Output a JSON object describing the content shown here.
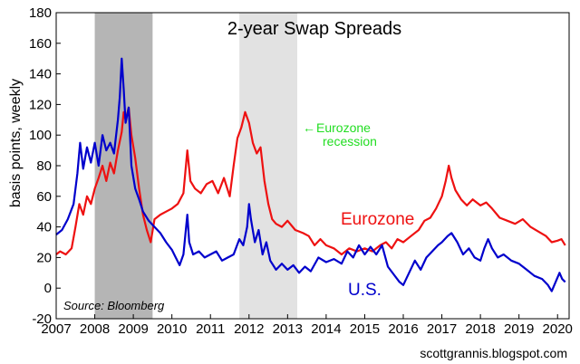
{
  "chart_data": {
    "type": "line",
    "title": "2-year Swap Spreads",
    "ylabel": "basis points, weekly",
    "xlabel": "",
    "ylim": [
      -20,
      180
    ],
    "xlim": [
      2007,
      2020.3
    ],
    "yticks": [
      "-20",
      "0",
      "20",
      "40",
      "60",
      "80",
      "100",
      "120",
      "140",
      "160",
      "180"
    ],
    "xticks": [
      "2007",
      "2008",
      "2009",
      "2010",
      "2011",
      "2012",
      "2013",
      "2014",
      "2015",
      "2016",
      "2017",
      "2018",
      "2019",
      "2020"
    ],
    "grid": false,
    "recession_shading": [
      {
        "start": 2008.0,
        "end": 2009.5,
        "color": "#b5b5b5",
        "note": "U.S. recession"
      },
      {
        "start": 2011.75,
        "end": 2013.25,
        "color": "#e2e2e2",
        "note": "Eurozone recession"
      }
    ],
    "annotation": {
      "text_line1": "Eurozone",
      "text_line2": "recession",
      "arrow": "←",
      "color": "#22dd22"
    },
    "source": "Source: Bloomberg",
    "credit": "scottgrannis.blogspot.com",
    "colors": {
      "us": "#0000cc",
      "eurozone": "#ee1111"
    },
    "series": [
      {
        "name": "U.S.",
        "label_text": "U.S.",
        "color": "#0000cc",
        "points": [
          [
            2007.0,
            35
          ],
          [
            2007.15,
            38
          ],
          [
            2007.3,
            45
          ],
          [
            2007.45,
            55
          ],
          [
            2007.55,
            75
          ],
          [
            2007.62,
            95
          ],
          [
            2007.7,
            78
          ],
          [
            2007.8,
            92
          ],
          [
            2007.9,
            82
          ],
          [
            2008.0,
            95
          ],
          [
            2008.1,
            80
          ],
          [
            2008.2,
            100
          ],
          [
            2008.3,
            90
          ],
          [
            2008.4,
            95
          ],
          [
            2008.5,
            88
          ],
          [
            2008.6,
            110
          ],
          [
            2008.65,
            125
          ],
          [
            2008.7,
            150
          ],
          [
            2008.75,
            130
          ],
          [
            2008.8,
            108
          ],
          [
            2008.88,
            118
          ],
          [
            2008.95,
            80
          ],
          [
            2009.05,
            65
          ],
          [
            2009.15,
            58
          ],
          [
            2009.25,
            50
          ],
          [
            2009.4,
            44
          ],
          [
            2009.55,
            40
          ],
          [
            2009.7,
            36
          ],
          [
            2009.85,
            30
          ],
          [
            2010.0,
            25
          ],
          [
            2010.1,
            20
          ],
          [
            2010.2,
            15
          ],
          [
            2010.3,
            22
          ],
          [
            2010.4,
            48
          ],
          [
            2010.45,
            30
          ],
          [
            2010.55,
            22
          ],
          [
            2010.7,
            24
          ],
          [
            2010.85,
            20
          ],
          [
            2011.0,
            22
          ],
          [
            2011.15,
            24
          ],
          [
            2011.3,
            18
          ],
          [
            2011.45,
            20
          ],
          [
            2011.6,
            22
          ],
          [
            2011.75,
            32
          ],
          [
            2011.85,
            28
          ],
          [
            2011.95,
            40
          ],
          [
            2012.0,
            55
          ],
          [
            2012.05,
            45
          ],
          [
            2012.15,
            30
          ],
          [
            2012.25,
            38
          ],
          [
            2012.35,
            22
          ],
          [
            2012.45,
            30
          ],
          [
            2012.55,
            18
          ],
          [
            2012.7,
            12
          ],
          [
            2012.85,
            16
          ],
          [
            2013.0,
            12
          ],
          [
            2013.15,
            15
          ],
          [
            2013.3,
            10
          ],
          [
            2013.45,
            14
          ],
          [
            2013.6,
            11
          ],
          [
            2013.8,
            20
          ],
          [
            2014.0,
            17
          ],
          [
            2014.2,
            19
          ],
          [
            2014.4,
            16
          ],
          [
            2014.55,
            24
          ],
          [
            2014.7,
            20
          ],
          [
            2014.85,
            28
          ],
          [
            2015.0,
            22
          ],
          [
            2015.15,
            27
          ],
          [
            2015.3,
            22
          ],
          [
            2015.45,
            28
          ],
          [
            2015.6,
            14
          ],
          [
            2015.75,
            9
          ],
          [
            2015.9,
            4
          ],
          [
            2016.0,
            2
          ],
          [
            2016.15,
            10
          ],
          [
            2016.3,
            18
          ],
          [
            2016.45,
            12
          ],
          [
            2016.6,
            20
          ],
          [
            2016.75,
            24
          ],
          [
            2016.9,
            28
          ],
          [
            2017.0,
            30
          ],
          [
            2017.15,
            34
          ],
          [
            2017.25,
            36
          ],
          [
            2017.4,
            30
          ],
          [
            2017.55,
            22
          ],
          [
            2017.7,
            26
          ],
          [
            2017.85,
            20
          ],
          [
            2018.0,
            18
          ],
          [
            2018.1,
            26
          ],
          [
            2018.2,
            32
          ],
          [
            2018.3,
            26
          ],
          [
            2018.45,
            20
          ],
          [
            2018.6,
            22
          ],
          [
            2018.8,
            18
          ],
          [
            2019.0,
            16
          ],
          [
            2019.2,
            12
          ],
          [
            2019.4,
            8
          ],
          [
            2019.6,
            6
          ],
          [
            2019.75,
            2
          ],
          [
            2019.85,
            -2
          ],
          [
            2019.95,
            4
          ],
          [
            2020.05,
            10
          ],
          [
            2020.12,
            6
          ],
          [
            2020.2,
            4
          ]
        ]
      },
      {
        "name": "Eurozone",
        "label_text": "Eurozone",
        "color": "#ee1111",
        "points": [
          [
            2007.0,
            22
          ],
          [
            2007.1,
            24
          ],
          [
            2007.25,
            22
          ],
          [
            2007.4,
            26
          ],
          [
            2007.5,
            40
          ],
          [
            2007.6,
            55
          ],
          [
            2007.7,
            48
          ],
          [
            2007.8,
            60
          ],
          [
            2007.9,
            55
          ],
          [
            2008.0,
            65
          ],
          [
            2008.1,
            72
          ],
          [
            2008.2,
            80
          ],
          [
            2008.3,
            70
          ],
          [
            2008.4,
            82
          ],
          [
            2008.5,
            75
          ],
          [
            2008.6,
            90
          ],
          [
            2008.7,
            102
          ],
          [
            2008.75,
            115
          ],
          [
            2008.8,
            110
          ],
          [
            2008.88,
            118
          ],
          [
            2008.95,
            100
          ],
          [
            2009.05,
            85
          ],
          [
            2009.15,
            65
          ],
          [
            2009.25,
            48
          ],
          [
            2009.35,
            38
          ],
          [
            2009.45,
            30
          ],
          [
            2009.55,
            45
          ],
          [
            2009.7,
            48
          ],
          [
            2009.85,
            50
          ],
          [
            2010.0,
            52
          ],
          [
            2010.15,
            55
          ],
          [
            2010.3,
            62
          ],
          [
            2010.4,
            90
          ],
          [
            2010.48,
            70
          ],
          [
            2010.6,
            65
          ],
          [
            2010.75,
            62
          ],
          [
            2010.9,
            68
          ],
          [
            2011.05,
            70
          ],
          [
            2011.2,
            62
          ],
          [
            2011.35,
            72
          ],
          [
            2011.5,
            60
          ],
          [
            2011.6,
            80
          ],
          [
            2011.7,
            98
          ],
          [
            2011.8,
            105
          ],
          [
            2011.9,
            115
          ],
          [
            2012.0,
            108
          ],
          [
            2012.1,
            95
          ],
          [
            2012.2,
            88
          ],
          [
            2012.3,
            92
          ],
          [
            2012.4,
            70
          ],
          [
            2012.5,
            55
          ],
          [
            2012.6,
            45
          ],
          [
            2012.7,
            42
          ],
          [
            2012.85,
            40
          ],
          [
            2013.0,
            44
          ],
          [
            2013.2,
            38
          ],
          [
            2013.4,
            36
          ],
          [
            2013.55,
            34
          ],
          [
            2013.7,
            28
          ],
          [
            2013.85,
            32
          ],
          [
            2014.0,
            28
          ],
          [
            2014.2,
            26
          ],
          [
            2014.4,
            22
          ],
          [
            2014.6,
            26
          ],
          [
            2014.8,
            24
          ],
          [
            2015.0,
            26
          ],
          [
            2015.2,
            24
          ],
          [
            2015.4,
            28
          ],
          [
            2015.55,
            30
          ],
          [
            2015.7,
            26
          ],
          [
            2015.85,
            32
          ],
          [
            2016.0,
            30
          ],
          [
            2016.2,
            34
          ],
          [
            2016.4,
            38
          ],
          [
            2016.55,
            44
          ],
          [
            2016.7,
            46
          ],
          [
            2016.85,
            52
          ],
          [
            2017.0,
            60
          ],
          [
            2017.1,
            70
          ],
          [
            2017.18,
            80
          ],
          [
            2017.25,
            72
          ],
          [
            2017.35,
            64
          ],
          [
            2017.5,
            58
          ],
          [
            2017.65,
            54
          ],
          [
            2017.8,
            58
          ],
          [
            2018.0,
            54
          ],
          [
            2018.15,
            56
          ],
          [
            2018.3,
            52
          ],
          [
            2018.5,
            46
          ],
          [
            2018.7,
            44
          ],
          [
            2018.9,
            42
          ],
          [
            2019.1,
            45
          ],
          [
            2019.3,
            40
          ],
          [
            2019.5,
            37
          ],
          [
            2019.7,
            34
          ],
          [
            2019.85,
            30
          ],
          [
            2020.0,
            31
          ],
          [
            2020.1,
            32
          ],
          [
            2020.2,
            28
          ]
        ]
      }
    ]
  }
}
